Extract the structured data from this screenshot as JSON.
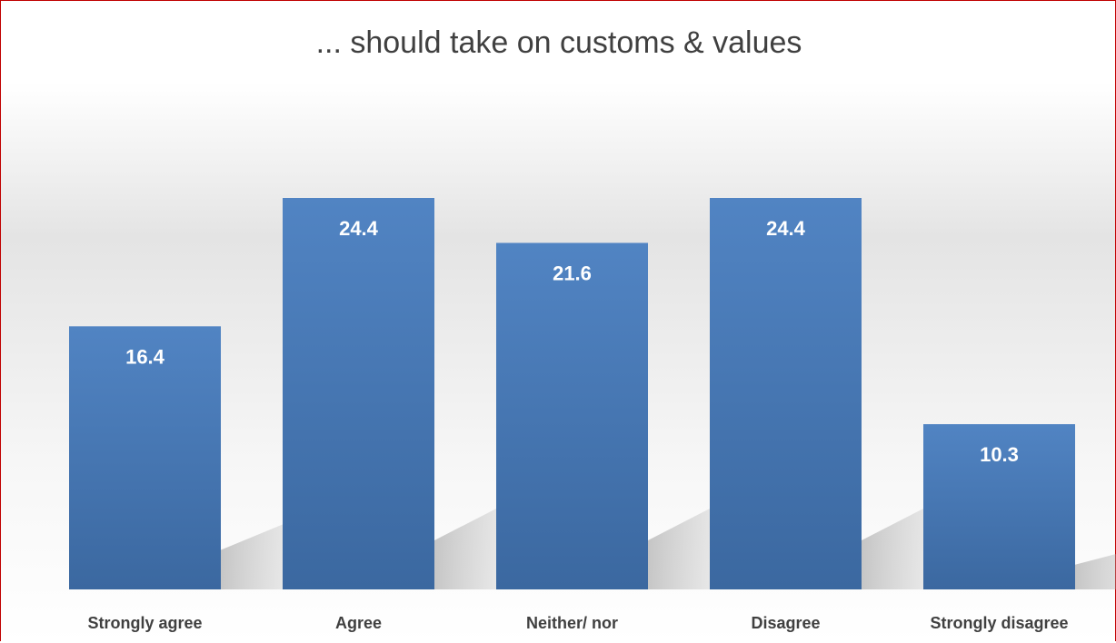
{
  "chart_data": {
    "type": "bar",
    "title": "... should take on customs & values",
    "categories": [
      "Strongly agree",
      "Agree",
      "Neither/ nor",
      "Disagree",
      "Strongly disagree"
    ],
    "values": [
      16.4,
      24.4,
      21.6,
      24.4,
      10.3
    ],
    "data_labels": [
      "16.4",
      "24.4",
      "21.6",
      "24.4",
      "10.3"
    ],
    "xlabel": "",
    "ylabel": "",
    "ylim": [
      0,
      24.4
    ],
    "grid": false,
    "legend": "none",
    "colors": {
      "bar_top": "#5184c3",
      "bar_bottom": "#3b68a0",
      "frame": "#c00000",
      "text": "#404040"
    }
  }
}
